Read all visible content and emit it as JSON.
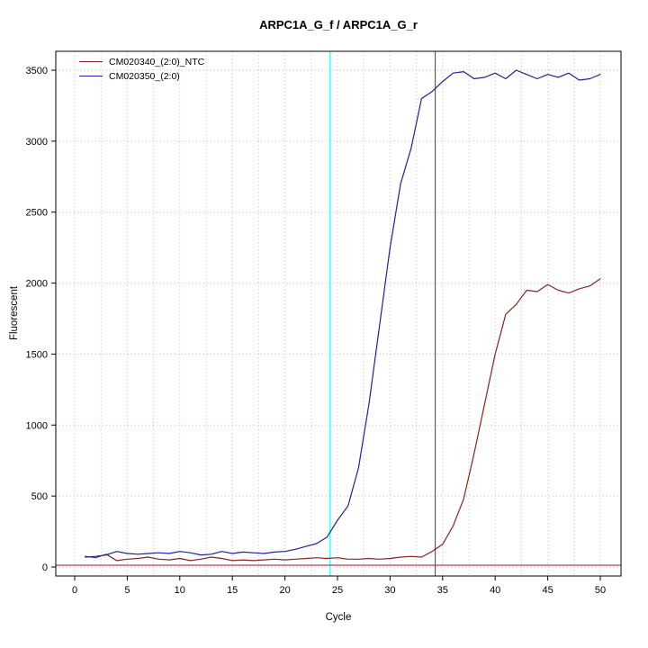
{
  "page": {
    "background": "#ffffff"
  },
  "chart_data": {
    "type": "line",
    "title": "ARPC1A_G_f / ARPC1A_G_r",
    "xlabel": "Cycle",
    "ylabel": "Fluorescent",
    "xlim": [
      0,
      50
    ],
    "ylim": [
      0,
      3500
    ],
    "x_ticks": [
      0,
      5,
      10,
      15,
      20,
      25,
      30,
      35,
      40,
      45,
      50
    ],
    "y_ticks": [
      0,
      500,
      1000,
      1500,
      2000,
      2500,
      3000,
      3500
    ],
    "grid": {
      "x_step": 2.5,
      "y_step": 500,
      "color": "#c3c3c3",
      "style": "dotted"
    },
    "legend_position": "top-left",
    "x": [
      1,
      2,
      3,
      4,
      5,
      6,
      7,
      8,
      9,
      10,
      11,
      12,
      13,
      14,
      15,
      16,
      17,
      18,
      19,
      20,
      21,
      22,
      23,
      24,
      25,
      26,
      27,
      28,
      29,
      30,
      31,
      32,
      33,
      34,
      35,
      36,
      37,
      38,
      39,
      40,
      41,
      42,
      43,
      44,
      45,
      46,
      47,
      48,
      49,
      50
    ],
    "series": [
      {
        "name": "CM020340_(2:0)_NTC",
        "color": "#8b2323",
        "values": [
          75,
          65,
          90,
          45,
          55,
          60,
          70,
          55,
          50,
          60,
          45,
          55,
          70,
          60,
          45,
          50,
          45,
          50,
          55,
          50,
          55,
          60,
          65,
          60,
          65,
          55,
          55,
          60,
          55,
          60,
          70,
          75,
          70,
          110,
          160,
          290,
          480,
          800,
          1150,
          1500,
          1780,
          1850,
          1950,
          1940,
          1990,
          1950,
          1930,
          1960,
          1980,
          2030
        ]
      },
      {
        "name": "CM020350_(2:0)",
        "color": "#2020a0",
        "values": [
          70,
          75,
          85,
          110,
          95,
          90,
          95,
          100,
          95,
          110,
          100,
          85,
          90,
          110,
          95,
          105,
          100,
          95,
          105,
          110,
          125,
          145,
          165,
          210,
          330,
          430,
          700,
          1150,
          1700,
          2250,
          2700,
          2950,
          3300,
          3350,
          3420,
          3480,
          3490,
          3440,
          3450,
          3480,
          3440,
          3500,
          3470,
          3440,
          3470,
          3450,
          3480,
          3430,
          3440,
          3470
        ]
      }
    ],
    "threshold_lines": [
      {
        "orientation": "vertical",
        "x": 24.3,
        "color": "#00ffff",
        "name": "ct-marker-cyan"
      },
      {
        "orientation": "vertical",
        "x": 34.3,
        "color": "#8b2323",
        "name": "ct-marker-red"
      },
      {
        "orientation": "horizontal",
        "y": 13,
        "color": "#8b2323",
        "name": "fluorescence-threshold-line"
      }
    ]
  }
}
